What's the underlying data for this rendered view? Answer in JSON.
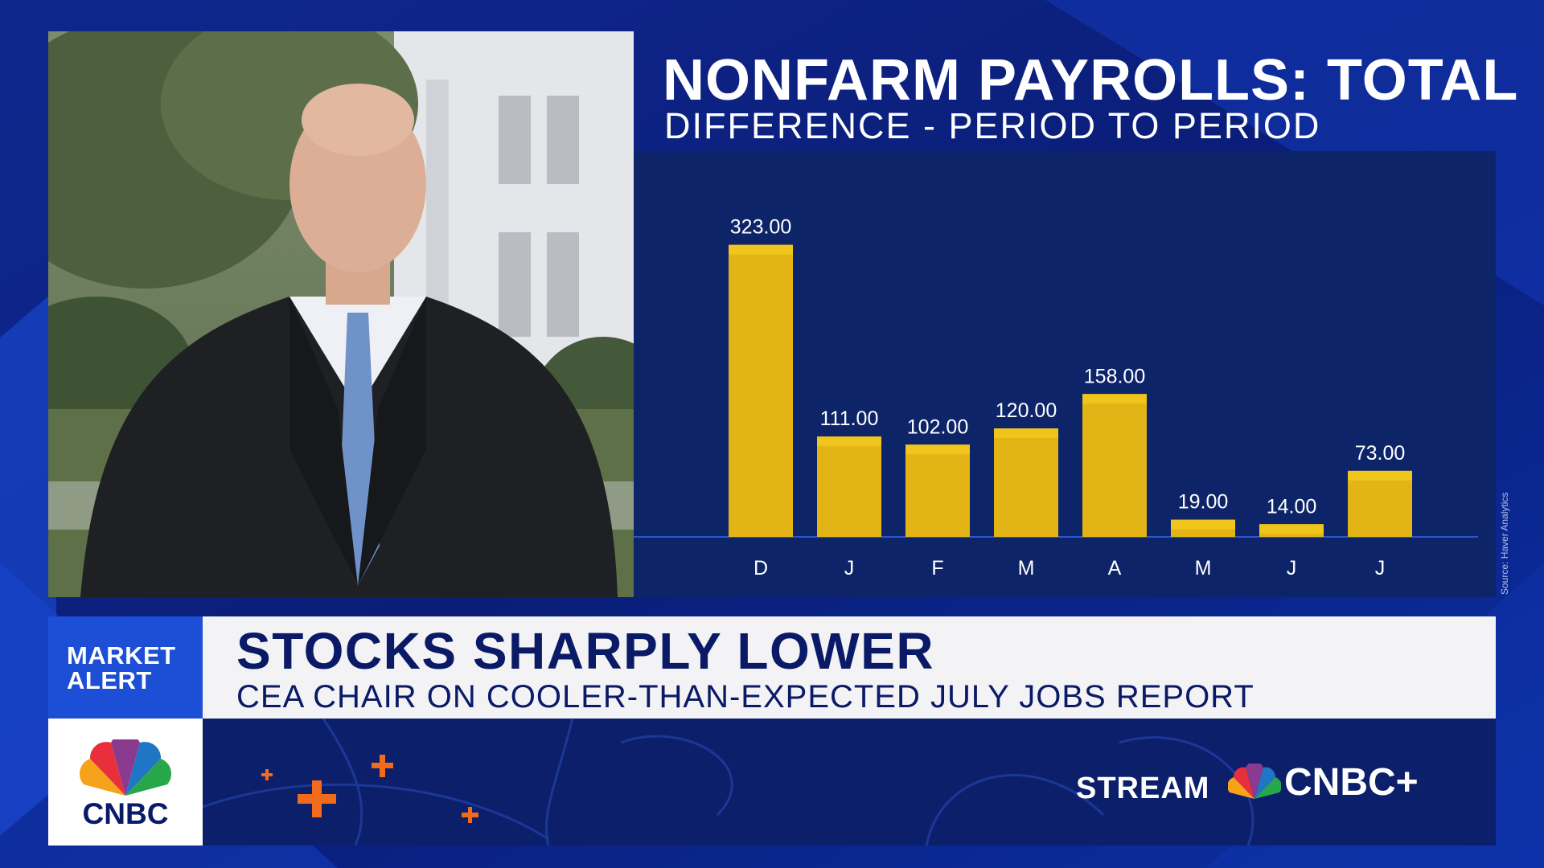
{
  "broadcast": {
    "chart_title": "NONFARM PAYROLLS: TOTAL",
    "chart_subtitle": "DIFFERENCE - PERIOD TO PERIOD",
    "source_note": "Source: Haver Analytics",
    "alert_line1": "MARKET",
    "alert_line2": "ALERT",
    "headline": "STOCKS SHARPLY LOWER",
    "subheadline": "CEA CHAIR ON COOLER-THAN-EXPECTED JULY JOBS REPORT",
    "network_logo": "CNBC",
    "stream_label": "STREAM",
    "stream_service": "CNBC+"
  },
  "colors": {
    "bar_fill": "#e2b416",
    "bar_top": "#f0c51c",
    "chart_bg": "#0d2568",
    "alert_blue": "#1d4fd6",
    "headline_text": "#0a1a66",
    "accent_orange": "#f26b1d"
  },
  "chart_data": {
    "type": "bar",
    "title": "NONFARM PAYROLLS: TOTAL",
    "subtitle": "DIFFERENCE - PERIOD TO PERIOD",
    "categories": [
      "D",
      "J",
      "F",
      "M",
      "A",
      "M",
      "J",
      "J"
    ],
    "values": [
      323,
      111,
      102,
      120,
      158,
      19,
      14,
      73
    ],
    "value_labels": [
      "323.00",
      "111.00",
      "102.00",
      "120.00",
      "158.00",
      "19.00",
      "14.00",
      "73.00"
    ],
    "ylim": [
      0,
      400
    ],
    "grid": false,
    "legend": "none"
  }
}
